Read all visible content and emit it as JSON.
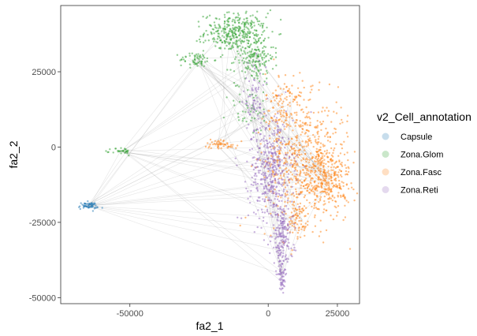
{
  "chart_data": {
    "type": "scatter",
    "title": "",
    "xlabel": "fa2_1",
    "ylabel": "fa2_2",
    "xlim": [
      -75000,
      33000
    ],
    "ylim": [
      -52000,
      47000
    ],
    "x_ticks": [
      -50000,
      0,
      25000
    ],
    "x_tick_labels": [
      "-50000",
      "0",
      "25000"
    ],
    "y_ticks": [
      25000,
      0,
      -25000,
      -50000
    ],
    "y_tick_labels": [
      "25000",
      "0",
      "-25000",
      "-50000"
    ],
    "grid": false,
    "legend": {
      "title": "v2_Cell_annotation",
      "placement": "right"
    },
    "edges_color": "#9a9a9a",
    "series": [
      {
        "name": "Capsule",
        "color": "#1f77b4",
        "clusters": [
          {
            "cx": -65000,
            "cy": -19500,
            "sx": 1800,
            "sy": 600,
            "n": 60
          }
        ]
      },
      {
        "name": "Zona.Glom",
        "color": "#2ca02c",
        "clusters": [
          {
            "cx": -12000,
            "cy": 38000,
            "sx": 5500,
            "sy": 3200,
            "n": 320
          },
          {
            "cx": -5000,
            "cy": 30000,
            "sx": 3500,
            "sy": 4500,
            "n": 180
          },
          {
            "cx": -26000,
            "cy": 29000,
            "sx": 3000,
            "sy": 1200,
            "n": 60
          },
          {
            "cx": -53000,
            "cy": -1500,
            "sx": 1800,
            "sy": 700,
            "n": 30
          },
          {
            "cx": -7000,
            "cy": 12000,
            "sx": 4000,
            "sy": 4000,
            "n": 40
          }
        ]
      },
      {
        "name": "Zona.Fasc",
        "color": "#ff7f0e",
        "clusters": [
          {
            "cx": 14000,
            "cy": -5000,
            "sx": 7500,
            "sy": 10000,
            "n": 650
          },
          {
            "cx": 22000,
            "cy": -11000,
            "sx": 4000,
            "sy": 5000,
            "n": 200
          },
          {
            "cx": 6000,
            "cy": 14000,
            "sx": 3500,
            "sy": 5500,
            "n": 120
          },
          {
            "cx": -17000,
            "cy": 1000,
            "sx": 3000,
            "sy": 800,
            "n": 50
          },
          {
            "cx": 10000,
            "cy": -25000,
            "sx": 2500,
            "sy": 4000,
            "n": 60
          }
        ]
      },
      {
        "name": "Zona.Reti",
        "color": "#9467bd",
        "clusters": [
          {
            "cx": 1000,
            "cy": -8000,
            "sx": 4000,
            "sy": 9000,
            "n": 420
          },
          {
            "cx": 5000,
            "cy": -30000,
            "sx": 2000,
            "sy": 6000,
            "n": 180
          },
          {
            "cx": 5000,
            "cy": -43000,
            "sx": 700,
            "sy": 2500,
            "n": 50
          },
          {
            "cx": -5000,
            "cy": 15000,
            "sx": 2000,
            "sy": 6000,
            "n": 70
          }
        ]
      }
    ]
  }
}
